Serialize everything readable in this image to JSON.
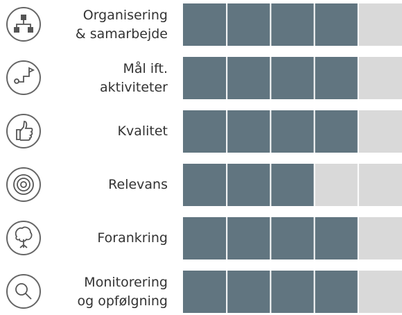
{
  "chart_data": {
    "type": "rating",
    "categories": [
      "Organisering\n& samarbejde",
      "Mål ift.\naktiviteter",
      "Kvalitet",
      "Relevans",
      "Forankring",
      "Monitorering\nog opfølgning"
    ],
    "values": [
      4,
      4,
      4,
      3,
      4,
      4
    ],
    "xlim": [
      0,
      5
    ],
    "color": "#617580",
    "background_color": "#d9d9d9"
  }
}
